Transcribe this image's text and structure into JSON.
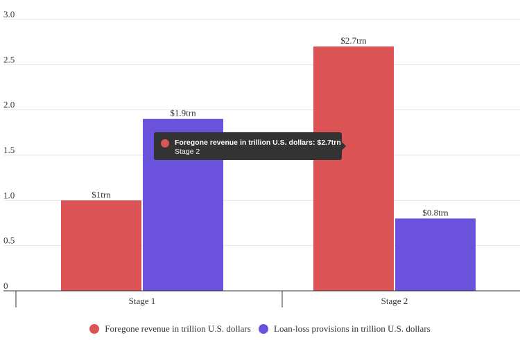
{
  "chart_data": {
    "type": "bar",
    "categories": [
      "Stage 1",
      "Stage 2"
    ],
    "series": [
      {
        "name": "Foregone revenue in trillion U.S. dollars",
        "values": [
          1.0,
          2.7
        ],
        "labels": [
          "$1trn",
          "$2.7trn"
        ],
        "color": "#dc5356"
      },
      {
        "name": "Loan-loss provisions in trillion U.S. dollars",
        "values": [
          1.9,
          0.8
        ],
        "labels": [
          "$1.9trn",
          "$0.8trn"
        ],
        "color": "#6b52dc"
      }
    ],
    "ylim": [
      0,
      3.0
    ],
    "yticks": [
      "0",
      "0.5",
      "1.0",
      "1.5",
      "2.0",
      "2.5",
      "3.0"
    ],
    "grid": true,
    "legend_position": "bottom"
  },
  "tooltip": {
    "line1": "Foregone revenue in trillion U.S. dollars: $2.7trn",
    "line2": "Stage 2",
    "color": "#dc5356"
  }
}
